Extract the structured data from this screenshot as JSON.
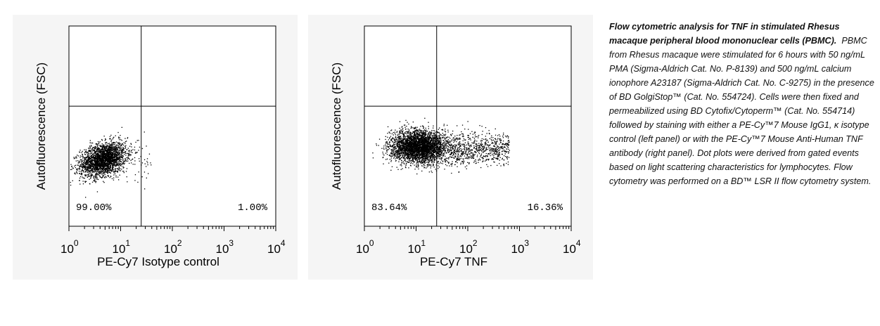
{
  "chart_data": [
    {
      "type": "scatter",
      "scale": "log",
      "xlim": [
        1,
        10000
      ],
      "ylim": [
        1,
        10000
      ],
      "xlabel": "PE-Cy7 Isotype control",
      "ylabel": "Autofluorescence (FSC)",
      "x_ticks": [
        "10^0",
        "10^1",
        "10^2",
        "10^3",
        "10^4"
      ],
      "quadrant_x": 25,
      "quadrant_y": 250,
      "quadrant_labels": {
        "left": "99.00%",
        "right": "1.00%"
      },
      "population": {
        "center_x": 4.5,
        "center_y": 22,
        "note": "dense cluster"
      }
    },
    {
      "type": "scatter",
      "scale": "log",
      "xlim": [
        1,
        10000
      ],
      "ylim": [
        1,
        10000
      ],
      "xlabel": "PE-Cy7 TNF",
      "ylabel": "Autofluorescence (FSC)",
      "x_ticks": [
        "10^0",
        "10^1",
        "10^2",
        "10^3",
        "10^4"
      ],
      "quadrant_x": 25,
      "quadrant_y": 250,
      "quadrant_labels": {
        "left": "83.64%",
        "right": "16.36%"
      },
      "population": {
        "center_x": 10,
        "center_y": 40,
        "note": "broad cluster with TNF+ tail"
      }
    }
  ],
  "caption": {
    "title": "Flow cytometric analysis for TNF in stimulated Rhesus macaque peripheral blood mononuclear cells (PBMC).",
    "body": "PBMC from Rhesus macaque were stimulated for 6 hours with 50 ng/mL PMA (Sigma-Aldrich Cat. No. P-8139) and 500 ng/mL calcium ionophore A23187 (Sigma-Aldrich Cat. No. C-9275) in the presence of BD GolgiStop™ (Cat. No. 554724). Cells were then fixed and permeabilized using BD Cytofix/Cytoperm™ (Cat. No. 554714) followed by staining with either a PE-Cy™7 Mouse IgG1, κ isotype control (left panel) or with the PE-Cy™7 Mouse Anti-Human TNF antibody (right panel). Dot plots were derived from gated events based on light scattering characteristics for lymphocytes. Flow cytometry was performed on a BD™ LSR II flow cytometry system."
  }
}
